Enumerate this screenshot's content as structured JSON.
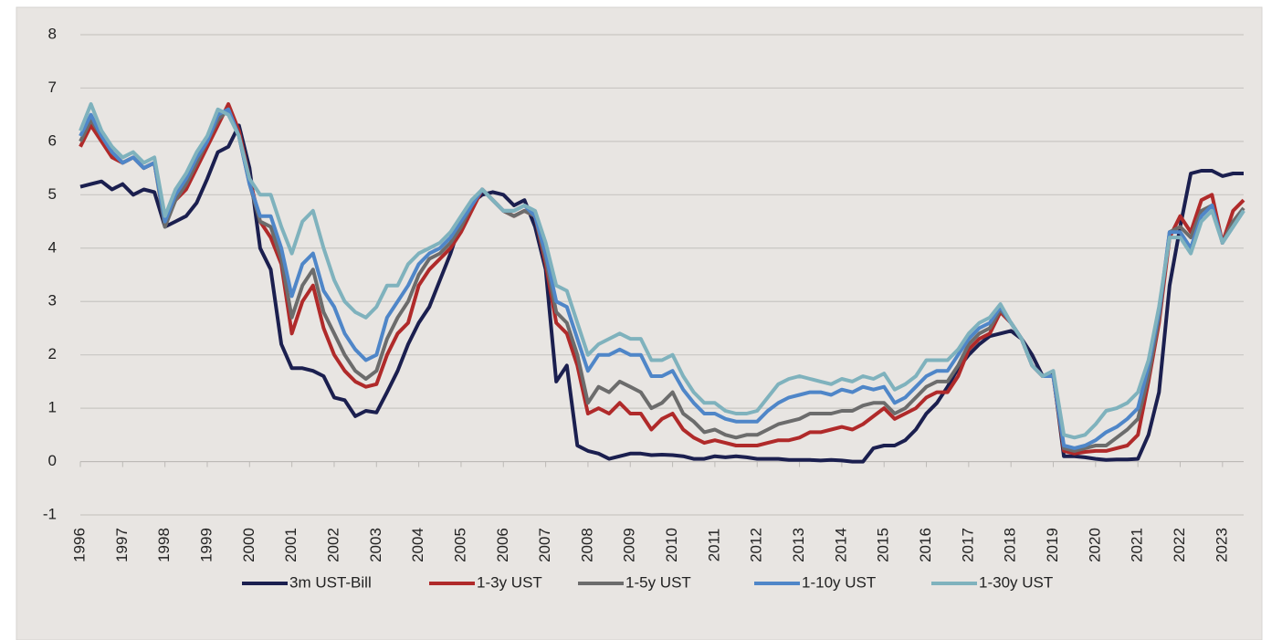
{
  "chart_data": {
    "type": "line",
    "x": [
      1996,
      1996.25,
      1996.5,
      1996.75,
      1997,
      1997.25,
      1997.5,
      1997.75,
      1998,
      1998.25,
      1998.5,
      1998.75,
      1999,
      1999.25,
      1999.5,
      1999.75,
      2000,
      2000.25,
      2000.5,
      2000.75,
      2001,
      2001.25,
      2001.5,
      2001.75,
      2002,
      2002.25,
      2002.5,
      2002.75,
      2003,
      2003.25,
      2003.5,
      2003.75,
      2004,
      2004.25,
      2004.5,
      2004.75,
      2005,
      2005.25,
      2005.5,
      2005.75,
      2006,
      2006.25,
      2006.5,
      2006.75,
      2007,
      2007.25,
      2007.5,
      2007.75,
      2008,
      2008.25,
      2008.5,
      2008.75,
      2009,
      2009.25,
      2009.5,
      2009.75,
      2010,
      2010.25,
      2010.5,
      2010.75,
      2011,
      2011.25,
      2011.5,
      2011.75,
      2012,
      2012.25,
      2012.5,
      2012.75,
      2013,
      2013.25,
      2013.5,
      2013.75,
      2014,
      2014.25,
      2014.5,
      2014.75,
      2015,
      2015.25,
      2015.5,
      2015.75,
      2016,
      2016.25,
      2016.5,
      2016.75,
      2017,
      2017.25,
      2017.5,
      2017.75,
      2018,
      2018.25,
      2018.5,
      2018.75,
      2019,
      2019.25,
      2019.5,
      2019.75,
      2020,
      2020.25,
      2020.5,
      2020.75,
      2021,
      2021.25,
      2021.5,
      2021.75,
      2022,
      2022.25,
      2022.5,
      2022.75,
      2023,
      2023.25,
      2023.5
    ],
    "series": [
      {
        "name": "3m UST-Bill",
        "color": "#1b1f4f",
        "values": [
          5.15,
          5.2,
          5.25,
          5.1,
          5.2,
          5.0,
          5.1,
          5.05,
          4.4,
          4.5,
          4.6,
          4.85,
          5.3,
          5.8,
          5.9,
          6.3,
          5.5,
          4.0,
          3.6,
          2.2,
          1.75,
          1.75,
          1.7,
          1.6,
          1.2,
          1.15,
          0.85,
          0.95,
          0.92,
          1.3,
          1.7,
          2.2,
          2.6,
          2.9,
          3.4,
          3.9,
          4.5,
          4.85,
          5.0,
          5.05,
          5.0,
          4.8,
          4.9,
          4.4,
          3.6,
          1.5,
          1.8,
          0.3,
          0.2,
          0.15,
          0.05,
          0.1,
          0.15,
          0.15,
          0.12,
          0.13,
          0.12,
          0.1,
          0.05,
          0.05,
          0.1,
          0.08,
          0.1,
          0.08,
          0.05,
          0.05,
          0.05,
          0.03,
          0.03,
          0.03,
          0.02,
          0.03,
          0.02,
          0.0,
          0.0,
          0.25,
          0.3,
          0.3,
          0.4,
          0.6,
          0.9,
          1.1,
          1.4,
          1.75,
          2.0,
          2.2,
          2.35,
          2.4,
          2.45,
          2.3,
          2.0,
          1.6,
          1.65,
          0.1,
          0.1,
          0.08,
          0.05,
          0.03,
          0.04,
          0.04,
          0.05,
          0.5,
          1.3,
          3.3,
          4.4,
          5.4,
          5.45,
          5.45,
          5.35,
          5.4,
          5.4
        ]
      },
      {
        "name": "1-3y UST",
        "color": "#b02a2a",
        "values": [
          5.9,
          6.3,
          6.0,
          5.7,
          5.6,
          5.7,
          5.5,
          5.6,
          4.5,
          4.9,
          5.1,
          5.5,
          5.9,
          6.3,
          6.7,
          6.2,
          5.3,
          4.5,
          4.2,
          3.7,
          2.4,
          3.0,
          3.3,
          2.5,
          2.0,
          1.7,
          1.5,
          1.4,
          1.45,
          2.0,
          2.4,
          2.6,
          3.3,
          3.6,
          3.8,
          4.0,
          4.3,
          4.7,
          5.1,
          4.9,
          4.7,
          4.6,
          4.7,
          4.6,
          3.7,
          2.6,
          2.4,
          1.8,
          0.9,
          1.0,
          0.9,
          1.1,
          0.9,
          0.9,
          0.6,
          0.8,
          0.9,
          0.6,
          0.45,
          0.35,
          0.4,
          0.35,
          0.3,
          0.3,
          0.3,
          0.35,
          0.4,
          0.4,
          0.45,
          0.55,
          0.55,
          0.6,
          0.65,
          0.6,
          0.7,
          0.85,
          1.0,
          0.8,
          0.9,
          1.0,
          1.2,
          1.3,
          1.3,
          1.6,
          2.1,
          2.3,
          2.4,
          2.8,
          2.6,
          2.3,
          1.8,
          1.6,
          1.6,
          0.2,
          0.15,
          0.18,
          0.2,
          0.2,
          0.25,
          0.3,
          0.5,
          1.5,
          2.6,
          4.2,
          4.6,
          4.3,
          4.9,
          5.0,
          4.1,
          4.7,
          4.9
        ]
      },
      {
        "name": "1-5y UST",
        "color": "#6c6c6c",
        "values": [
          6.0,
          6.4,
          6.1,
          5.8,
          5.6,
          5.7,
          5.5,
          5.6,
          4.4,
          4.9,
          5.2,
          5.6,
          6.0,
          6.4,
          6.6,
          6.1,
          5.2,
          4.5,
          4.4,
          3.8,
          2.7,
          3.3,
          3.6,
          2.8,
          2.4,
          2.0,
          1.7,
          1.55,
          1.7,
          2.3,
          2.7,
          3.0,
          3.5,
          3.8,
          3.9,
          4.1,
          4.4,
          4.8,
          5.1,
          4.9,
          4.7,
          4.6,
          4.7,
          4.6,
          3.8,
          2.8,
          2.6,
          2.0,
          1.1,
          1.4,
          1.3,
          1.5,
          1.4,
          1.3,
          1.0,
          1.1,
          1.3,
          0.9,
          0.75,
          0.55,
          0.6,
          0.5,
          0.45,
          0.5,
          0.5,
          0.6,
          0.7,
          0.75,
          0.8,
          0.9,
          0.9,
          0.9,
          0.95,
          0.95,
          1.05,
          1.1,
          1.1,
          0.9,
          1.0,
          1.2,
          1.4,
          1.5,
          1.5,
          1.8,
          2.2,
          2.4,
          2.5,
          2.85,
          2.6,
          2.3,
          1.8,
          1.6,
          1.6,
          0.25,
          0.2,
          0.25,
          0.3,
          0.3,
          0.45,
          0.6,
          0.8,
          1.6,
          2.7,
          4.3,
          4.4,
          4.2,
          4.7,
          4.8,
          4.1,
          4.5,
          4.75
        ]
      },
      {
        "name": "1-10y UST",
        "color": "#4f86c8",
        "values": [
          6.1,
          6.5,
          6.1,
          5.8,
          5.6,
          5.7,
          5.5,
          5.6,
          4.5,
          5.0,
          5.3,
          5.7,
          6.0,
          6.5,
          6.6,
          6.1,
          5.2,
          4.6,
          4.6,
          4.0,
          3.1,
          3.7,
          3.9,
          3.2,
          2.9,
          2.4,
          2.1,
          1.9,
          2.0,
          2.7,
          3.0,
          3.3,
          3.7,
          3.9,
          4.0,
          4.2,
          4.5,
          4.8,
          5.1,
          4.9,
          4.7,
          4.7,
          4.8,
          4.6,
          3.9,
          3.0,
          2.9,
          2.3,
          1.7,
          2.0,
          2.0,
          2.1,
          2.0,
          2.0,
          1.6,
          1.6,
          1.7,
          1.35,
          1.1,
          0.9,
          0.9,
          0.8,
          0.75,
          0.75,
          0.75,
          0.95,
          1.1,
          1.2,
          1.25,
          1.3,
          1.3,
          1.25,
          1.35,
          1.3,
          1.4,
          1.35,
          1.4,
          1.1,
          1.2,
          1.4,
          1.6,
          1.7,
          1.7,
          2.0,
          2.3,
          2.5,
          2.6,
          2.9,
          2.6,
          2.3,
          1.8,
          1.6,
          1.6,
          0.3,
          0.25,
          0.3,
          0.4,
          0.55,
          0.65,
          0.8,
          1.0,
          1.8,
          2.8,
          4.3,
          4.3,
          4.0,
          4.6,
          4.8,
          4.1,
          4.4,
          4.7
        ]
      },
      {
        "name": "1-30y UST",
        "color": "#7fb2bd",
        "values": [
          6.2,
          6.7,
          6.2,
          5.9,
          5.7,
          5.8,
          5.6,
          5.7,
          4.6,
          5.1,
          5.4,
          5.8,
          6.1,
          6.6,
          6.5,
          6.1,
          5.3,
          5.0,
          5.0,
          4.4,
          3.9,
          4.5,
          4.7,
          4.0,
          3.4,
          3.0,
          2.8,
          2.7,
          2.9,
          3.3,
          3.3,
          3.7,
          3.9,
          4.0,
          4.1,
          4.3,
          4.6,
          4.9,
          5.1,
          4.9,
          4.7,
          4.7,
          4.8,
          4.7,
          4.1,
          3.3,
          3.2,
          2.6,
          2.0,
          2.2,
          2.3,
          2.4,
          2.3,
          2.3,
          1.9,
          1.9,
          2.0,
          1.6,
          1.3,
          1.1,
          1.1,
          0.95,
          0.9,
          0.9,
          0.95,
          1.2,
          1.45,
          1.55,
          1.6,
          1.55,
          1.5,
          1.45,
          1.55,
          1.5,
          1.6,
          1.55,
          1.65,
          1.35,
          1.45,
          1.6,
          1.9,
          1.9,
          1.9,
          2.1,
          2.4,
          2.6,
          2.7,
          2.95,
          2.6,
          2.3,
          1.8,
          1.6,
          1.7,
          0.5,
          0.45,
          0.5,
          0.7,
          0.95,
          1.0,
          1.1,
          1.3,
          1.9,
          2.9,
          4.2,
          4.2,
          3.9,
          4.5,
          4.7,
          4.1,
          4.4,
          4.7
        ]
      }
    ],
    "xlim": [
      1996,
      2023.5
    ],
    "xticks": [
      1996,
      1997,
      1998,
      1999,
      2000,
      2001,
      2002,
      2003,
      2004,
      2005,
      2006,
      2007,
      2008,
      2009,
      2010,
      2011,
      2012,
      2013,
      2014,
      2015,
      2016,
      2017,
      2018,
      2019,
      2020,
      2021,
      2022,
      2023
    ],
    "ylim": [
      -1,
      8
    ],
    "yticks": [
      -1,
      0,
      1,
      2,
      3,
      4,
      5,
      6,
      7,
      8
    ],
    "grid": true,
    "legend": "bottom"
  }
}
